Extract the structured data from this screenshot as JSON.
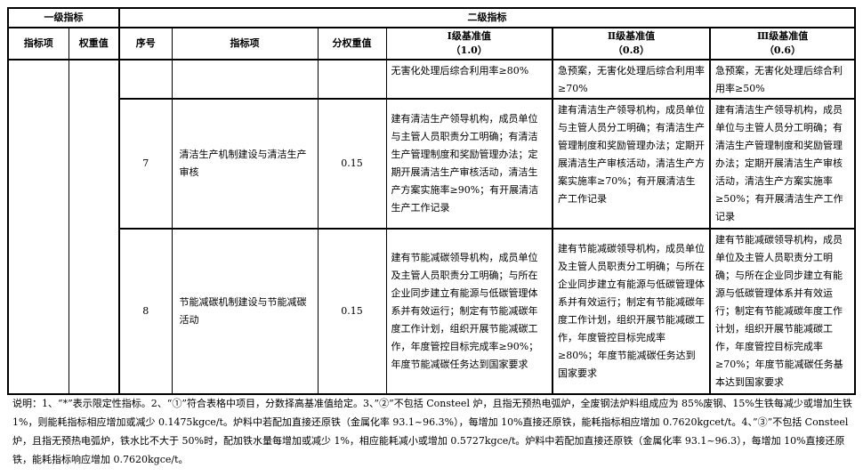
{
  "header": {
    "level1": "一级指标",
    "level2": "二级指标",
    "cols": [
      "指标项",
      "权重值",
      "序号",
      "指标项",
      "分权重值"
    ],
    "grades": [
      {
        "name": "Ⅰ级基准值",
        "value": "（1.0）"
      },
      {
        "name": "Ⅱ级基准值",
        "value": "（0.8）"
      },
      {
        "name": "Ⅲ级基准值",
        "value": "（0.6）"
      }
    ]
  },
  "rows": [
    {
      "no": "",
      "item": "",
      "weight": "",
      "g1": "无害化处理后综合利用率≥80%",
      "g2": "急预案，无害化处理后综合利用率≥70%",
      "g3": "急预案，无害化处理后综合利用率≥50%"
    },
    {
      "no": "7",
      "item": "清洁生产机制建设与清洁生产审核",
      "weight": "0.15",
      "g1": "建有清洁生产领导机构，成员单位与主管人员职责分工明确；有清洁生产管理制度和奖励管理办法；定期开展清洁生产审核活动，清洁生产方案实施率≥90%；有开展清洁生产工作记录",
      "g2": "建有清洁生产领导机构，成员单位与主管人员分工明确；有清洁生产管理制度和奖励管理办法；定期开展清洁生产审核活动，清洁生产方案实施率≥70%；有开展清洁生产工作记录",
      "g3": "建有清洁生产领导机构，成员单位与主管人员分工明确；有清洁生产管理制度和奖励管理办法；定期开展清洁生产审核活动，清洁生产方案实施率≥50%；有开展清洁生产工作记录"
    },
    {
      "no": "8",
      "item": "节能减碳机制建设与节能减碳活动",
      "weight": "0.15",
      "g1": "建有节能减碳领导机构，成员单位及主管人员职责分工明确；与所在企业同步建立有能源与低碳管理体系并有效运行；制定有节能减碳年度工作计划，组织开展节能减碳工作，年度管控目标完成率≥90%；年度节能减碳任务达到国家要求",
      "g2": "建有节能减碳领导机构，成员单位及主管人员职责分工明确；与所在企业同步建立有能源与低碳管理体系并有效运行；制定有节能减碳年度工作计划，组织开展节能减碳工作，年度管控目标完成率≥80%；年度节能减碳任务达到国家要求",
      "g3": "建有节能减碳领导机构，成员单位及主管人员职责分工明确；与所在企业同步建立有能源与低碳管理体系并有效运行；制定有节能减碳年度工作计划，组织开展节能减碳工作，年度管控目标完成率≥70%；年度节能减碳任务基本达到国家要求"
    }
  ],
  "note": "说明：1、“*”表示限定性指标。2、“①”符合表格中项目，分数择高基准值给定。3、”②”不包括 Consteel 炉，且指无预热电弧炉，全废钢法炉料组成应为 85%废钢、15%生铁每减少或增加生铁 1%，则能耗指标相应增加或减少 0.1475kgce/t。炉料中若配加直接还原铁（金属化率 93.1~96.3%），每增加 10%直接还原铁，能耗指标相应增加 0.7620kgcet/t。4、”③”不包括 Consteel 炉，且指无预热电弧炉，铁水比不大于 50%时，配加铁水量每增加或减少 1%，相应能耗减小或增加 0.5727kgce/t。炉料中若配加直接还原铁（金属化率 93.1~96.3），每增加 10%直接还原铁，能耗指标响应增加 0.7620kgce/t。"
}
